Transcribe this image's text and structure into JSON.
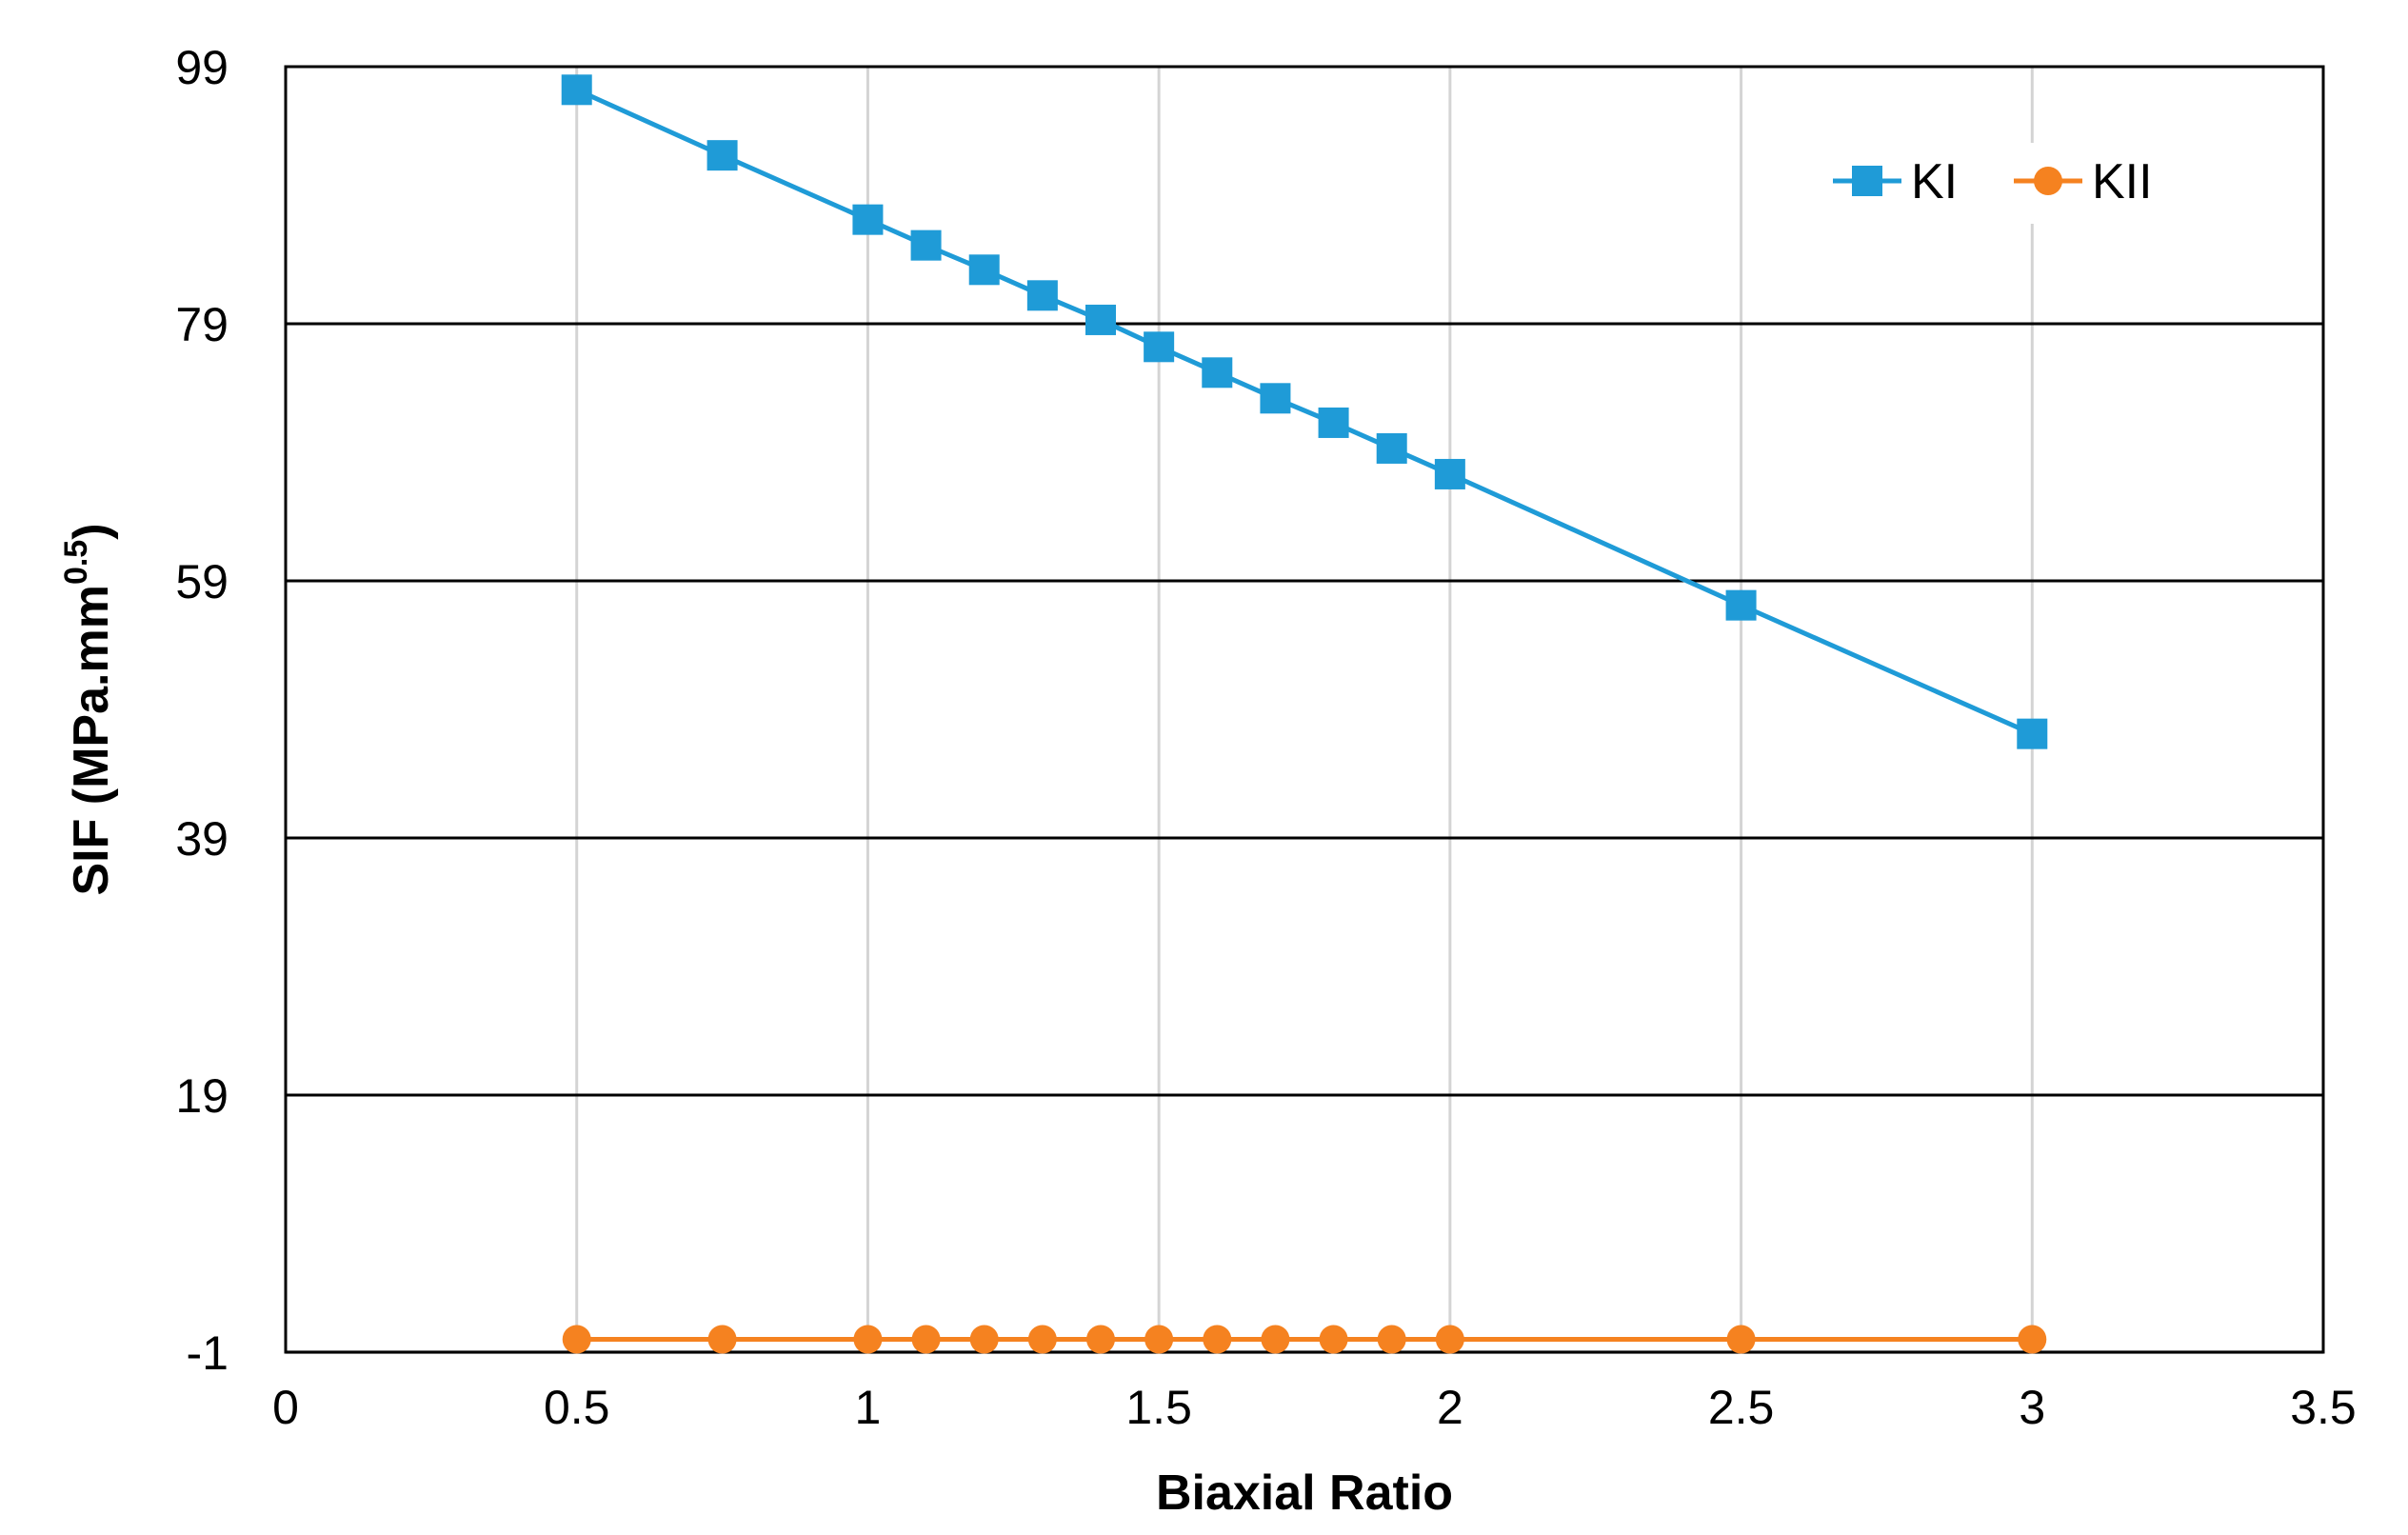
{
  "chart_data": {
    "type": "line",
    "title": "",
    "xlabel": "Biaxial Ratio",
    "ylabel": "SIF (MPa.mm",
    "ylabel_sup": "0.5",
    "ylabel_close": ")",
    "xlim": [
      0,
      3.5
    ],
    "ylim": [
      -1,
      99
    ],
    "xticks": [
      0,
      0.5,
      1,
      1.5,
      2,
      2.5,
      3,
      3.5
    ],
    "xtick_labels": [
      "0",
      "0.5",
      "1",
      "1.5",
      "2",
      "2.5",
      "3",
      "3.5"
    ],
    "yticks": [
      -1,
      19,
      39,
      59,
      79,
      99
    ],
    "ytick_labels": [
      "-1",
      "19",
      "39",
      "59",
      "79",
      "99"
    ],
    "grid": {
      "horizontal": true,
      "vertical": true
    },
    "legend_position": "top-right",
    "x": [
      0.5,
      0.75,
      1,
      1.1,
      1.2,
      1.3,
      1.4,
      1.5,
      1.6,
      1.7,
      1.8,
      1.9,
      2,
      2.5,
      3
    ],
    "series": [
      {
        "name": "KI",
        "color": "#1F9BD7",
        "marker": "square",
        "values": [
          97.2,
          92.1,
          87.1,
          85.1,
          83.2,
          81.2,
          79.3,
          77.2,
          75.2,
          73.2,
          71.3,
          69.3,
          67.3,
          57.1,
          47.1
        ]
      },
      {
        "name": "KII",
        "color": "#F58220",
        "marker": "circle",
        "values": [
          0,
          0,
          0,
          0,
          0,
          0,
          0,
          0,
          0,
          0,
          0,
          0,
          0,
          0,
          0
        ]
      }
    ]
  }
}
